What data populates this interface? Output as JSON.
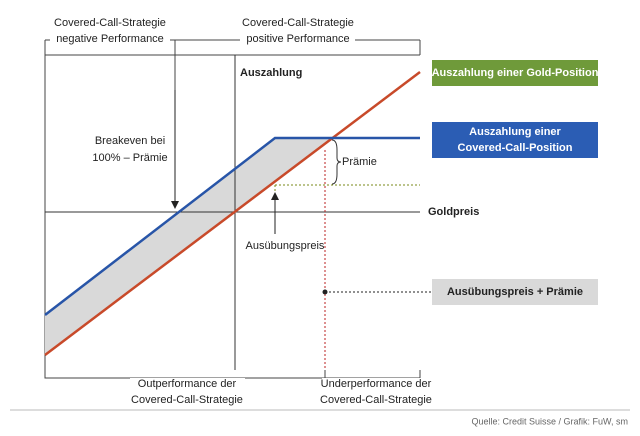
{
  "header": {
    "top_left": [
      "Covered-Call-Strategie",
      "negative Performance"
    ],
    "top_right": [
      "Covered-Call-Strategie",
      "positive Performance"
    ]
  },
  "axes": {
    "y_label": "Auszahlung",
    "x_label": "Goldpreis"
  },
  "annotations": {
    "breakeven": [
      "Breakeven bei",
      "100% – Prämie"
    ],
    "premium": "Prämie",
    "strike": "Ausübungspreis"
  },
  "legend": {
    "gold": "Auszahlung einer Gold-Position",
    "covered_call": [
      "Auszahlung einer",
      "Covered-Call-Position"
    ],
    "strike_plus_premium": "Ausübungspreis + Prämie"
  },
  "footer": {
    "bottom_left": [
      "Outperformance der",
      "Covered-Call-Strategie"
    ],
    "bottom_right": [
      "Underperformance der",
      "Covered-Call-Strategie"
    ],
    "source": "Quelle: Credit Suisse / Grafik: FuW, sm"
  }
}
